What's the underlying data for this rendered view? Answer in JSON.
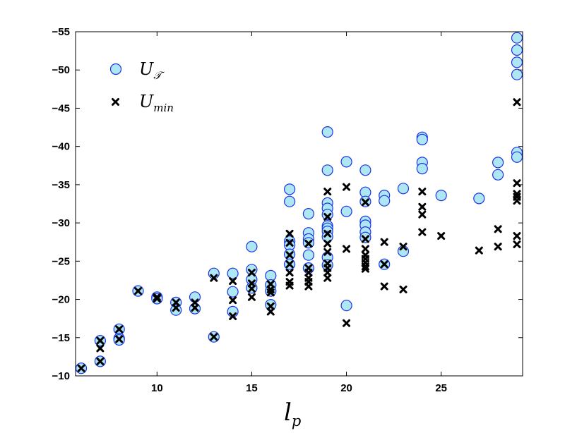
{
  "chart_data": {
    "type": "scatter",
    "title": "",
    "xlabel": "l",
    "xlabel_subscript": "p",
    "ylabel": "",
    "xlim": [
      5.7,
      29.3
    ],
    "ylim": [
      -10,
      -55
    ],
    "y_axis_reversed": true,
    "xticks": [
      10,
      15,
      20,
      25
    ],
    "xtick_labels": [
      "10",
      "15",
      "20",
      "25"
    ],
    "yticks": [
      -10,
      -15,
      -20,
      -25,
      -30,
      -35,
      -40,
      -45,
      -50,
      -55
    ],
    "ytick_labels": [
      "−10",
      "−15",
      "−20",
      "−25",
      "−30",
      "−35",
      "−40",
      "−45",
      "−50",
      "−55"
    ],
    "grid": false,
    "legend_position": "top-left",
    "series": [
      {
        "name": "U_T",
        "label_main": "U",
        "label_sub": "𝒯",
        "marker": "circle",
        "fill": "#aee6f4",
        "stroke": "#1a33e6",
        "points": [
          [
            6,
            -11
          ],
          [
            7,
            -14.6
          ],
          [
            7,
            -11.9
          ],
          [
            8,
            -16.1
          ],
          [
            8,
            -14.9
          ],
          [
            8,
            -14.7
          ],
          [
            9,
            -21.1
          ],
          [
            10,
            -20.3
          ],
          [
            10,
            -20.1
          ],
          [
            11,
            -19.6
          ],
          [
            11,
            -18.6
          ],
          [
            12,
            -20.3
          ],
          [
            12,
            -18.8
          ],
          [
            13,
            -23.4
          ],
          [
            13,
            -15.1
          ],
          [
            14,
            -23.4
          ],
          [
            14,
            -21
          ],
          [
            14,
            -18.4
          ],
          [
            15,
            -26.9
          ],
          [
            15,
            -23.9
          ],
          [
            15,
            -22.6
          ],
          [
            15,
            -21.5
          ],
          [
            16,
            -23.1
          ],
          [
            16,
            -21.9
          ],
          [
            16,
            -21.1
          ],
          [
            16,
            -19.3
          ],
          [
            17,
            -34.4
          ],
          [
            17,
            -32.8
          ],
          [
            17,
            -27.6
          ],
          [
            17,
            -27.1
          ],
          [
            17,
            -25.9
          ],
          [
            17,
            -24.6
          ],
          [
            18,
            -31.2
          ],
          [
            18,
            -28.7
          ],
          [
            18,
            -27.9
          ],
          [
            18,
            -27.4
          ],
          [
            18,
            -25.8
          ],
          [
            18,
            -24.1
          ],
          [
            19,
            -41.9
          ],
          [
            19,
            -36.9
          ],
          [
            19,
            -32.6
          ],
          [
            19,
            -31.9
          ],
          [
            19,
            -31.1
          ],
          [
            19,
            -29.6
          ],
          [
            19,
            -29.3
          ],
          [
            19,
            -28.9
          ],
          [
            19,
            -28.2
          ],
          [
            19,
            -25.5
          ],
          [
            19,
            -24.5
          ],
          [
            20,
            -38
          ],
          [
            20,
            -31.5
          ],
          [
            20,
            -19.2
          ],
          [
            21,
            -36.9
          ],
          [
            21,
            -34
          ],
          [
            21,
            -32.8
          ],
          [
            21,
            -30.2
          ],
          [
            21,
            -29.7
          ],
          [
            21,
            -28.8
          ],
          [
            21,
            -28.1
          ],
          [
            22,
            -33.6
          ],
          [
            22,
            -32.9
          ],
          [
            22,
            -24.6
          ],
          [
            23,
            -34.5
          ],
          [
            23,
            -26.3
          ],
          [
            24,
            -41.2
          ],
          [
            24,
            -40.9
          ],
          [
            24,
            -37.9
          ],
          [
            24,
            -37.1
          ],
          [
            25,
            -33.6
          ],
          [
            27,
            -33.2
          ],
          [
            28,
            -37.9
          ],
          [
            28,
            -36.3
          ],
          [
            29,
            -54.2
          ],
          [
            29,
            -52.6
          ],
          [
            29,
            -51
          ],
          [
            29,
            -49.4
          ],
          [
            29,
            -39.2
          ],
          [
            29,
            -38.6
          ]
        ]
      },
      {
        "name": "U_min",
        "label_main": "U",
        "label_sub": "min",
        "marker": "x",
        "color": "#000000",
        "points": [
          [
            6,
            -11
          ],
          [
            7,
            -14.6
          ],
          [
            7,
            -13.6
          ],
          [
            7,
            -11.9
          ],
          [
            8,
            -16.1
          ],
          [
            8,
            -14.8
          ],
          [
            9,
            -21.1
          ],
          [
            10,
            -20.3
          ],
          [
            10,
            -20.1
          ],
          [
            11,
            -19.6
          ],
          [
            11,
            -18.9
          ],
          [
            12,
            -19.6
          ],
          [
            12,
            -18.9
          ],
          [
            13,
            -22.8
          ],
          [
            13,
            -15.1
          ],
          [
            14,
            -22.4
          ],
          [
            14,
            -19.9
          ],
          [
            14,
            -17.8
          ],
          [
            15,
            -23.5
          ],
          [
            15,
            -22.1
          ],
          [
            15,
            -21.4
          ],
          [
            15,
            -20.3
          ],
          [
            16,
            -22
          ],
          [
            16,
            -21.3
          ],
          [
            16,
            -20.9
          ],
          [
            16,
            -19.1
          ],
          [
            16,
            -18.4
          ],
          [
            17,
            -28.6
          ],
          [
            17,
            -27.4
          ],
          [
            17,
            -25.8
          ],
          [
            17,
            -24.6
          ],
          [
            17,
            -23.5
          ],
          [
            17,
            -22.3
          ],
          [
            17,
            -21.8
          ],
          [
            18,
            -27.3
          ],
          [
            18,
            -24.1
          ],
          [
            18,
            -23.5
          ],
          [
            18,
            -22.8
          ],
          [
            18,
            -22.3
          ],
          [
            18,
            -21.7
          ],
          [
            19,
            -34.1
          ],
          [
            19,
            -30.8
          ],
          [
            19,
            -28.6
          ],
          [
            19,
            -27.3
          ],
          [
            19,
            -26.2
          ],
          [
            19,
            -24.7
          ],
          [
            19,
            -24.1
          ],
          [
            19,
            -23.5
          ],
          [
            19,
            -22.8
          ],
          [
            20,
            -34.7
          ],
          [
            20,
            -26.6
          ],
          [
            20,
            -16.9
          ],
          [
            21,
            -32.7
          ],
          [
            21,
            -27.9
          ],
          [
            21,
            -26.6
          ],
          [
            21,
            -25.8
          ],
          [
            21,
            -25.3
          ],
          [
            21,
            -24.8
          ],
          [
            21,
            -24.3
          ],
          [
            21,
            -24
          ],
          [
            22,
            -27.5
          ],
          [
            22,
            -24.6
          ],
          [
            22,
            -21.7
          ],
          [
            23,
            -26.9
          ],
          [
            23,
            -21.3
          ],
          [
            24,
            -34.1
          ],
          [
            24,
            -32.1
          ],
          [
            24,
            -31.1
          ],
          [
            24,
            -28.8
          ],
          [
            25,
            -28.3
          ],
          [
            27,
            -26.4
          ],
          [
            28,
            -29.2
          ],
          [
            28,
            -26.9
          ],
          [
            29,
            -45.8
          ],
          [
            29,
            -35.2
          ],
          [
            29,
            -33.8
          ],
          [
            29,
            -33.4
          ],
          [
            29,
            -32.9
          ],
          [
            29,
            -28.3
          ],
          [
            29,
            -27.2
          ]
        ]
      }
    ]
  }
}
